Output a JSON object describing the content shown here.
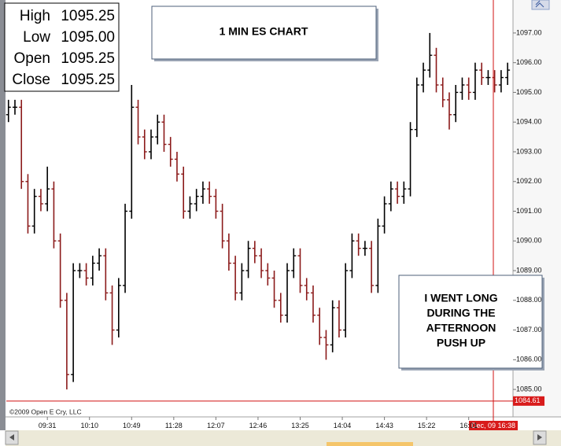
{
  "chart_data": {
    "type": "ohlc",
    "title": "1 MIN ES CHART",
    "annotation": [
      "I WENT LONG",
      "DURING THE",
      "AFTERNOON",
      "PUSH UP"
    ],
    "copyright": "©2009 Open E Cry, LLC",
    "info": [
      {
        "name": "High",
        "value": "1095.25"
      },
      {
        "name": "Low",
        "value": "1095.00"
      },
      {
        "name": "Open",
        "value": "1095.25"
      },
      {
        "name": "Close",
        "value": "1095.25"
      }
    ],
    "crosshair": {
      "time_label": "Dec, 09 16:38",
      "price": 1084.61
    },
    "up_color": "#000000",
    "down_color": "#8b1a1a",
    "xlim": [
      "08:53",
      "16:42"
    ],
    "xticks": [
      "09:31",
      "10:10",
      "10:49",
      "11:28",
      "12:07",
      "12:46",
      "13:25",
      "14:04",
      "14:43",
      "15:22",
      "16:01"
    ],
    "ylim": [
      1084.42,
      1098.11
    ],
    "yticks": [
      {
        "value": 1097,
        "label": "1097.00"
      },
      {
        "value": 1096,
        "label": "1096.00"
      },
      {
        "value": 1095,
        "label": "1095.00"
      },
      {
        "value": 1094,
        "label": "1094.00"
      },
      {
        "value": 1093,
        "label": "1093.00"
      },
      {
        "value": 1092,
        "label": "1092.00"
      },
      {
        "value": 1091,
        "label": "1091.00"
      },
      {
        "value": 1090,
        "label": "1090.00"
      },
      {
        "value": 1089,
        "label": "1089.00"
      },
      {
        "value": 1088,
        "label": "1088.00"
      },
      {
        "value": 1087,
        "label": "1087.00"
      },
      {
        "value": 1086,
        "label": "1086.00"
      },
      {
        "value": 1085,
        "label": "1085.00"
      }
    ],
    "x": [
      "08:55",
      "09:01",
      "09:07",
      "09:13",
      "09:19",
      "09:25",
      "09:31",
      "09:37",
      "09:43",
      "09:49",
      "09:55",
      "10:01",
      "10:07",
      "10:13",
      "10:19",
      "10:25",
      "10:31",
      "10:37",
      "10:43",
      "10:49",
      "10:55",
      "11:01",
      "11:07",
      "11:13",
      "11:19",
      "11:25",
      "11:31",
      "11:37",
      "11:43",
      "11:49",
      "11:55",
      "12:01",
      "12:07",
      "12:13",
      "12:19",
      "12:25",
      "12:31",
      "12:37",
      "12:43",
      "12:49",
      "12:55",
      "13:01",
      "13:07",
      "13:13",
      "13:19",
      "13:25",
      "13:31",
      "13:37",
      "13:43",
      "13:49",
      "13:55",
      "14:01",
      "14:07",
      "14:13",
      "14:19",
      "14:25",
      "14:31",
      "14:37",
      "14:43",
      "14:49",
      "14:55",
      "15:01",
      "15:07",
      "15:13",
      "15:19",
      "15:25",
      "15:31",
      "15:37",
      "15:43",
      "15:49",
      "15:55",
      "16:01",
      "16:07",
      "16:13",
      "16:19",
      "16:25",
      "16:31",
      "16:37"
    ],
    "open": [
      1094.25,
      1094.5,
      1094.5,
      1092,
      1090.5,
      1091.5,
      1091.25,
      1091.75,
      1090,
      1088,
      1085.5,
      1089,
      1089,
      1088.75,
      1089.25,
      1089.5,
      1088.25,
      1087,
      1088.5,
      1091,
      1094.5,
      1093.5,
      1093,
      1093.5,
      1094,
      1093.25,
      1092.75,
      1092.25,
      1091,
      1091.25,
      1091.5,
      1091.75,
      1091.5,
      1091,
      1090,
      1089.25,
      1088.25,
      1089,
      1089.75,
      1089.5,
      1089,
      1088.75,
      1088,
      1087.5,
      1089,
      1089.5,
      1088.5,
      1088.25,
      1087.5,
      1086.75,
      1086.5,
      1087.75,
      1087,
      1089,
      1090,
      1089.75,
      1089.75,
      1088.5,
      1090.5,
      1091.25,
      1091.75,
      1091.5,
      1091.75,
      1093.75,
      1095.25,
      1095.75,
      1096.25,
      1095.25,
      1094.75,
      1094.25,
      1095,
      1095.25,
      1095,
      1095.75,
      1095.5,
      1095.5,
      1095.25,
      1095.5
    ],
    "high": [
      1094.75,
      1094.75,
      1094.75,
      1092.25,
      1091.75,
      1091.75,
      1092.5,
      1092,
      1090.25,
      1088.25,
      1089.25,
      1089.25,
      1089.25,
      1089.5,
      1089.75,
      1089.75,
      1088.5,
      1088.75,
      1091.25,
      1095.25,
      1094.75,
      1093.75,
      1093.75,
      1094.25,
      1094.25,
      1093.5,
      1093,
      1092.5,
      1091.5,
      1091.75,
      1092,
      1092,
      1091.75,
      1091.25,
      1090.25,
      1089.5,
      1089.25,
      1090,
      1090,
      1089.75,
      1089.25,
      1089,
      1088.25,
      1089.25,
      1089.75,
      1089.75,
      1088.75,
      1088.5,
      1087.75,
      1087,
      1088,
      1088,
      1089.25,
      1090.25,
      1090.25,
      1090,
      1090,
      1090.75,
      1091.5,
      1092,
      1092,
      1092,
      1094,
      1095.5,
      1096,
      1097,
      1096.5,
      1095.5,
      1095,
      1095.25,
      1095.5,
      1095.5,
      1096,
      1096,
      1095.75,
      1095.75,
      1095.75,
      1096
    ],
    "low": [
      1094,
      1094.25,
      1091.75,
      1090.25,
      1090.25,
      1091,
      1091,
      1089.75,
      1087.75,
      1085,
      1085.25,
      1088.75,
      1088.5,
      1088.5,
      1089,
      1088,
      1086.5,
      1086.75,
      1088.25,
      1090.75,
      1093.25,
      1092.75,
      1092.75,
      1093.25,
      1093,
      1092.5,
      1092,
      1090.75,
      1090.75,
      1091,
      1091.25,
      1091.25,
      1090.75,
      1089.75,
      1089,
      1088,
      1088,
      1088.75,
      1089.25,
      1088.75,
      1088.5,
      1087.75,
      1087.25,
      1087.25,
      1088.75,
      1088.25,
      1088,
      1087.25,
      1086.5,
      1086,
      1086.25,
      1086.75,
      1086.75,
      1088.75,
      1089.5,
      1089.5,
      1088.25,
      1088.25,
      1090.25,
      1091,
      1091.25,
      1091.25,
      1091.5,
      1093.5,
      1095,
      1095.5,
      1095,
      1094.5,
      1093.75,
      1094,
      1094.75,
      1094.75,
      1094.75,
      1095.25,
      1095.25,
      1095,
      1095,
      1095.25
    ],
    "close": [
      1094.5,
      1094.5,
      1092,
      1090.5,
      1091.5,
      1091.25,
      1091.75,
      1090,
      1088,
      1085.5,
      1089,
      1089,
      1088.75,
      1089.25,
      1089.5,
      1088.25,
      1087,
      1088.5,
      1091,
      1094.5,
      1093.5,
      1093,
      1093.5,
      1094,
      1093.25,
      1092.75,
      1092.25,
      1091,
      1091.25,
      1091.5,
      1091.75,
      1091.5,
      1091,
      1090,
      1089.25,
      1088.25,
      1089,
      1089.75,
      1089.5,
      1089,
      1088.75,
      1088,
      1087.5,
      1089,
      1089.5,
      1088.5,
      1088.25,
      1087.5,
      1086.75,
      1086.5,
      1087.75,
      1087,
      1089,
      1090,
      1089.75,
      1089.75,
      1088.5,
      1090.5,
      1091.25,
      1091.75,
      1091.5,
      1091.75,
      1093.75,
      1095.25,
      1095.75,
      1096.25,
      1095.25,
      1094.75,
      1094.25,
      1095,
      1095.25,
      1095,
      1095.75,
      1095.5,
      1095.5,
      1095.25,
      1095.5,
      1095.75
    ]
  }
}
